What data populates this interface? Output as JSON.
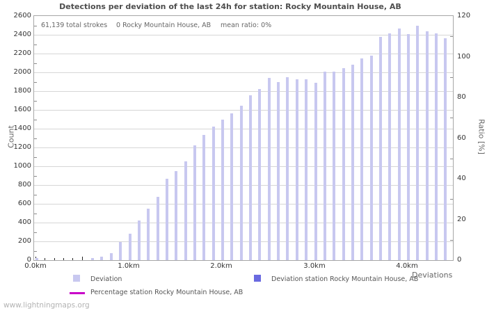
{
  "page": {
    "watermark": "www.lightningmaps.org"
  },
  "chart_data": {
    "type": "bar",
    "title": "Detections per deviation of the last 24h for station: Rocky Mountain House, AB",
    "annotations": {
      "total_strokes": "61,139 total strokes",
      "station_strokes": "0 Rocky Mountain House, AB",
      "mean_ratio": "mean ratio: 0%"
    },
    "xlabel": "Deviations",
    "ylabel_left": "Count",
    "ylabel_right": "Ratio [%]",
    "ylim_left": [
      0,
      2600
    ],
    "ylim_right": [
      0,
      120
    ],
    "y_ticks_left": [
      0,
      200,
      400,
      600,
      800,
      1000,
      1200,
      1400,
      1600,
      1800,
      2000,
      2200,
      2400,
      2600
    ],
    "y_ticks_right": [
      0,
      20,
      40,
      60,
      80,
      100,
      120
    ],
    "x_tick_labels": [
      {
        "km": 0.0,
        "label": "0.0km"
      },
      {
        "km": 1.0,
        "label": "1.0km"
      },
      {
        "km": 2.0,
        "label": "2.0km"
      },
      {
        "km": 3.0,
        "label": "3.0km"
      },
      {
        "km": 4.0,
        "label": "4.0km"
      }
    ],
    "bin_width_km": 0.1,
    "x_km": [
      0.0,
      0.1,
      0.2,
      0.3,
      0.4,
      0.5,
      0.6,
      0.7,
      0.8,
      0.9,
      1.0,
      1.1,
      1.2,
      1.3,
      1.4,
      1.5,
      1.6,
      1.7,
      1.8,
      1.9,
      2.0,
      2.1,
      2.2,
      2.3,
      2.4,
      2.5,
      2.6,
      2.7,
      2.8,
      2.9,
      3.0,
      3.1,
      3.2,
      3.3,
      3.4,
      3.5,
      3.6,
      3.7,
      3.8,
      3.9,
      4.0,
      4.1,
      4.2,
      4.3,
      4.4
    ],
    "series": [
      {
        "name": "Deviation",
        "color": "#c8c8f0",
        "axis": "left",
        "values": [
          25,
          0,
          0,
          0,
          0,
          0,
          20,
          40,
          75,
          190,
          280,
          420,
          545,
          675,
          865,
          950,
          1055,
          1220,
          1335,
          1425,
          1500,
          1560,
          1645,
          1755,
          1825,
          1940,
          1895,
          1950,
          1925,
          1925,
          1890,
          2010,
          2010,
          2045,
          2080,
          2145,
          2180,
          2375,
          2415,
          2470,
          2410,
          2495,
          2435,
          2415,
          2365
        ]
      },
      {
        "name": "Deviation station Rocky Mountain House, AB",
        "color": "#6a6ae0",
        "axis": "left",
        "values_uniform": 0
      },
      {
        "name": "Percentage station Rocky Mountain House, AB",
        "color": "#c800c8",
        "axis": "right",
        "values_uniform": 0
      }
    ],
    "grid": true,
    "legend_position": "bottom"
  }
}
